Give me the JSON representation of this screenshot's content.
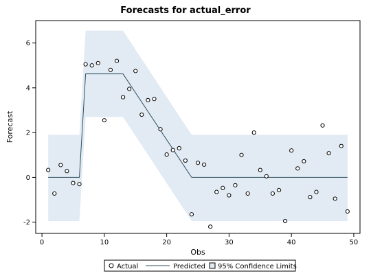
{
  "chart_data": {
    "type": "line",
    "title": "Forecasts for actual_error",
    "xlabel": "Obs",
    "ylabel": "Forecast",
    "xlim": [
      -1,
      51
    ],
    "ylim": [
      -2.5,
      7
    ],
    "xticks": [
      0,
      10,
      20,
      30,
      40,
      50
    ],
    "yticks": [
      -2,
      0,
      2,
      4,
      6
    ],
    "legend": {
      "placement": "bottom",
      "entries": [
        "Actual",
        "Predicted",
        "95% Confidence Limits"
      ]
    },
    "series": [
      {
        "name": "Actual",
        "marker": "circle",
        "x": [
          1,
          2,
          3,
          4,
          5,
          6,
          7,
          8,
          9,
          10,
          11,
          12,
          13,
          14,
          15,
          16,
          17,
          18,
          19,
          20,
          21,
          22,
          23,
          24,
          25,
          26,
          27,
          28,
          29,
          30,
          31,
          32,
          33,
          34,
          35,
          36,
          37,
          38,
          39,
          40,
          41,
          42,
          43,
          44,
          45,
          46,
          47,
          48,
          49
        ],
        "y": [
          0.33,
          -0.72,
          0.55,
          0.28,
          -0.25,
          -0.3,
          5.05,
          5.0,
          5.1,
          2.55,
          4.8,
          5.2,
          3.58,
          3.95,
          4.75,
          2.8,
          3.45,
          3.5,
          2.15,
          1.02,
          1.22,
          1.3,
          0.75,
          -1.65,
          0.65,
          0.57,
          -2.2,
          -0.65,
          -0.47,
          -0.8,
          -0.35,
          1.0,
          -0.72,
          2.0,
          0.33,
          0.05,
          -0.72,
          -0.57,
          -1.95,
          1.2,
          0.4,
          0.72,
          -0.88,
          -0.65,
          2.32,
          1.08,
          -0.95,
          1.4,
          -1.52
        ]
      },
      {
        "name": "Predicted",
        "x": [
          1,
          6,
          7,
          13,
          24,
          49
        ],
        "y": [
          0,
          0,
          4.62,
          4.62,
          0,
          0
        ]
      },
      {
        "name": "95% Confidence Limits",
        "x": [
          1,
          6,
          7,
          13,
          24,
          49
        ],
        "upper": [
          1.9,
          1.9,
          6.55,
          6.55,
          1.9,
          1.9
        ],
        "lower": [
          -1.95,
          -1.95,
          2.7,
          2.7,
          -1.95,
          -1.95
        ]
      }
    ]
  }
}
